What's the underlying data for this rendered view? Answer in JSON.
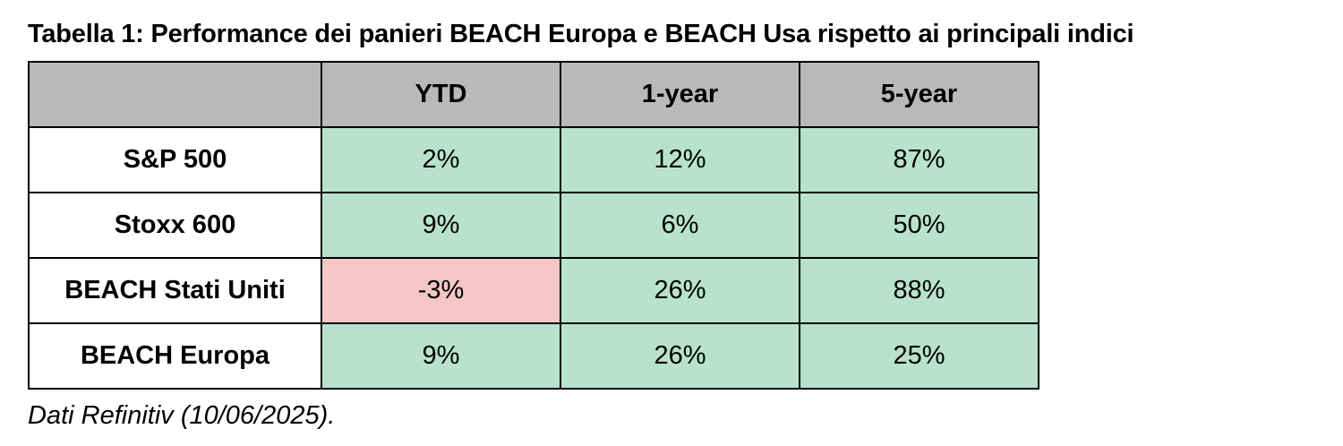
{
  "caption": "Tabella 1: Performance dei panieri BEACH Europa e BEACH Usa rispetto ai principali indici",
  "table": {
    "headers": [
      "",
      "YTD",
      "1-year",
      "5-year"
    ],
    "rows": [
      {
        "label": "S&P 500",
        "values": [
          "2%",
          "12%",
          "87%"
        ]
      },
      {
        "label": "Stoxx 600",
        "values": [
          "9%",
          "6%",
          "50%"
        ]
      },
      {
        "label": "BEACH Stati Uniti",
        "values": [
          "-3%",
          "26%",
          "88%"
        ]
      },
      {
        "label": "BEACH Europa",
        "values": [
          "9%",
          "26%",
          "25%"
        ]
      }
    ]
  },
  "colors": {
    "header_bg": "#b9b9b9",
    "positive_bg": "#b8e2cf",
    "negative_bg": "#f4c6c4"
  },
  "source_note": "Dati Refinitiv (10/06/2025)."
}
